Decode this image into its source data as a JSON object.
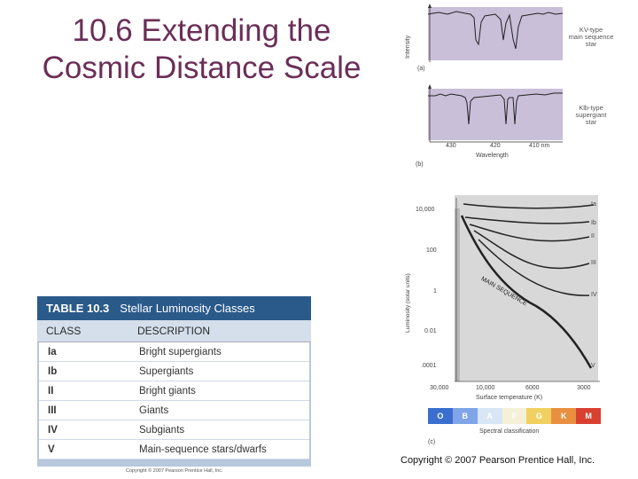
{
  "title": {
    "line1": "10.6 Extending the",
    "line2": "Cosmic Distance Scale"
  },
  "spectra": {
    "ylabel": "Intensity",
    "panel_a": "(a)",
    "panel_b": "(b)",
    "top_star": [
      "KV-type",
      "main sequence",
      "star"
    ],
    "bottom_star": [
      "Klb-type",
      "supergiant",
      "star"
    ],
    "ticks": [
      "430",
      "420",
      "410 nm"
    ],
    "xlabel": "Wavelength",
    "fill_color": "#c9bfd9",
    "line_color": "#222222"
  },
  "hr_diagram": {
    "ylabel": "Luminosity (solar units)",
    "y_ticks": [
      "10,000",
      "100",
      "1",
      "0.01",
      ".0001"
    ],
    "x_ticks": [
      "30,000",
      "10,000",
      "6000",
      "3000"
    ],
    "xlabel": "Surface temperature (K)",
    "class_labels": [
      "Ia",
      "Ib",
      "II",
      "III",
      "IV",
      "V"
    ],
    "main_sequence_label": "MAIN SEQUENCE",
    "spectral_classes": [
      "O",
      "B",
      "A",
      "F",
      "G",
      "K",
      "M"
    ],
    "spectral_label": "Spectral classification",
    "panel_c": "(c)",
    "spectral_colors": [
      "#3a6fd0",
      "#7fa5e8",
      "#d8e6f5",
      "#f5f0d8",
      "#f0d060",
      "#e89040",
      "#d84030"
    ]
  },
  "table": {
    "number": "TABLE 10.3",
    "caption": "Stellar Luminosity Classes",
    "headers": [
      "CLASS",
      "DESCRIPTION"
    ],
    "rows": [
      [
        "Ia",
        "Bright supergiants"
      ],
      [
        "Ib",
        "Supergiants"
      ],
      [
        "II",
        "Bright giants"
      ],
      [
        "III",
        "Giants"
      ],
      [
        "IV",
        "Subgiants"
      ],
      [
        "V",
        "Main-sequence stars/dwarfs"
      ]
    ],
    "credit": "Copyright © 2007 Pearson Prentice Hall, Inc."
  },
  "copyright": "Copyright © 2007 Pearson Prentice Hall, Inc."
}
